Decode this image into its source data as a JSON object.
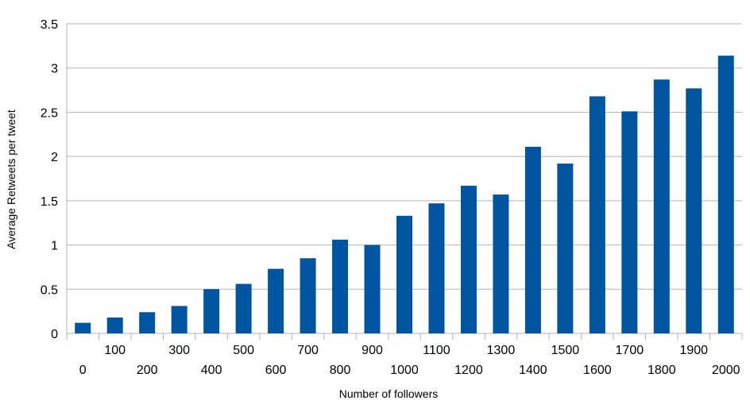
{
  "chart_data": {
    "type": "bar",
    "title": "",
    "xlabel": "Number of followers",
    "ylabel": "Average Retweets per tweet",
    "categories": [
      "0",
      "100",
      "200",
      "300",
      "400",
      "500",
      "600",
      "700",
      "800",
      "900",
      "1000",
      "1100",
      "1200",
      "1300",
      "1400",
      "1500",
      "1600",
      "1700",
      "1800",
      "1900",
      "2000"
    ],
    "values": [
      0.12,
      0.18,
      0.24,
      0.31,
      0.5,
      0.56,
      0.73,
      0.85,
      1.06,
      1.0,
      1.33,
      1.47,
      1.67,
      1.57,
      2.11,
      1.92,
      2.68,
      2.51,
      2.87,
      2.77,
      3.14
    ],
    "ylim": [
      0,
      3.5
    ],
    "yticks": [
      "0",
      "0.5",
      "1",
      "1.5",
      "2",
      "2.5",
      "3",
      "3.5"
    ],
    "grid": true,
    "legend": "none",
    "bar_color": "#0055a0"
  }
}
